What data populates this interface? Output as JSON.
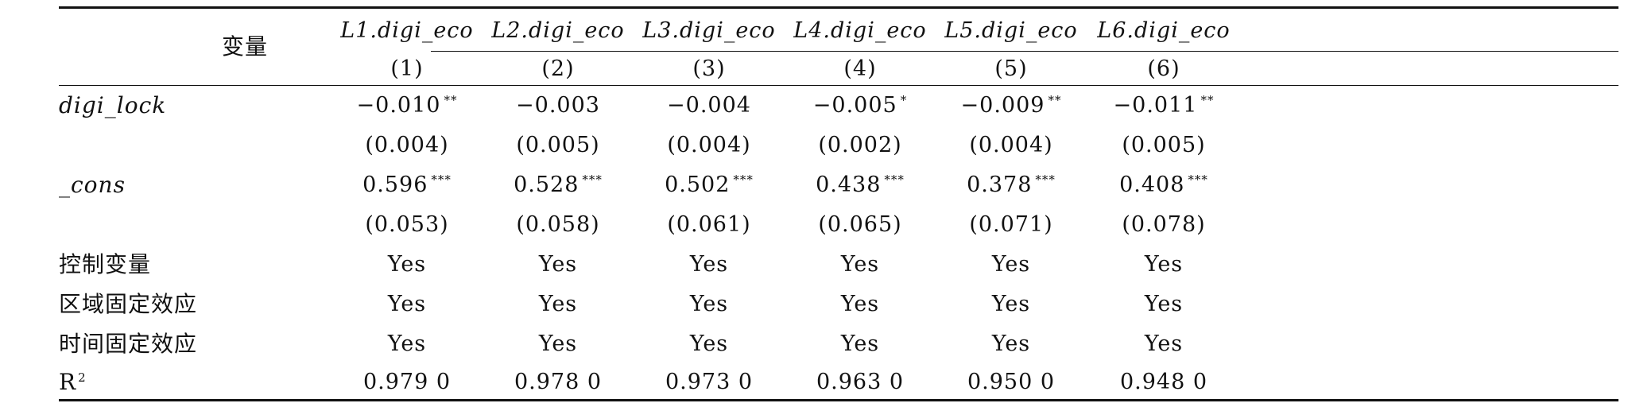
{
  "table": {
    "header": {
      "stub_label": "变量",
      "dep_vars": [
        "L1.digi_eco",
        "L2.digi_eco",
        "L3.digi_eco",
        "L4.digi_eco",
        "L5.digi_eco",
        "L6.digi_eco"
      ],
      "col_numbers": [
        "(1)",
        "(2)",
        "(3)",
        "(4)",
        "(5)",
        "(6)"
      ]
    },
    "rows": [
      {
        "label": "digi_lock",
        "italic": true,
        "values": [
          "−0.010",
          "−0.003",
          "−0.004",
          "−0.005",
          "−0.009",
          "−0.011"
        ],
        "stars": [
          "**",
          "",
          "",
          "*",
          "**",
          "**"
        ]
      },
      {
        "label": "",
        "italic": false,
        "values": [
          "(0.004)",
          "(0.005)",
          "(0.004)",
          "(0.002)",
          "(0.004)",
          "(0.005)"
        ],
        "stars": [
          "",
          "",
          "",
          "",
          "",
          ""
        ]
      },
      {
        "label": "_cons",
        "italic": true,
        "values": [
          "0.596",
          "0.528",
          "0.502",
          "0.438",
          "0.378",
          "0.408"
        ],
        "stars": [
          "***",
          "***",
          "***",
          "***",
          "***",
          "***"
        ]
      },
      {
        "label": "",
        "italic": false,
        "values": [
          "(0.053)",
          "(0.058)",
          "(0.061)",
          "(0.065)",
          "(0.071)",
          "(0.078)"
        ],
        "stars": [
          "",
          "",
          "",
          "",
          "",
          ""
        ]
      },
      {
        "label": "控制变量",
        "italic": false,
        "values": [
          "Yes",
          "Yes",
          "Yes",
          "Yes",
          "Yes",
          "Yes"
        ],
        "stars": [
          "",
          "",
          "",
          "",
          "",
          ""
        ]
      },
      {
        "label": "区域固定效应",
        "italic": false,
        "values": [
          "Yes",
          "Yes",
          "Yes",
          "Yes",
          "Yes",
          "Yes"
        ],
        "stars": [
          "",
          "",
          "",
          "",
          "",
          ""
        ]
      },
      {
        "label": "时间固定效应",
        "italic": false,
        "values": [
          "Yes",
          "Yes",
          "Yes",
          "Yes",
          "Yes",
          "Yes"
        ],
        "stars": [
          "",
          "",
          "",
          "",
          "",
          ""
        ]
      },
      {
        "label": "R",
        "label_sup": "2",
        "italic": false,
        "values": [
          "0.979 0",
          "0.978 0",
          "0.973 0",
          "0.963 0",
          "0.950 0",
          "0.948 0"
        ],
        "stars": [
          "",
          "",
          "",
          "",
          "",
          ""
        ]
      }
    ]
  }
}
